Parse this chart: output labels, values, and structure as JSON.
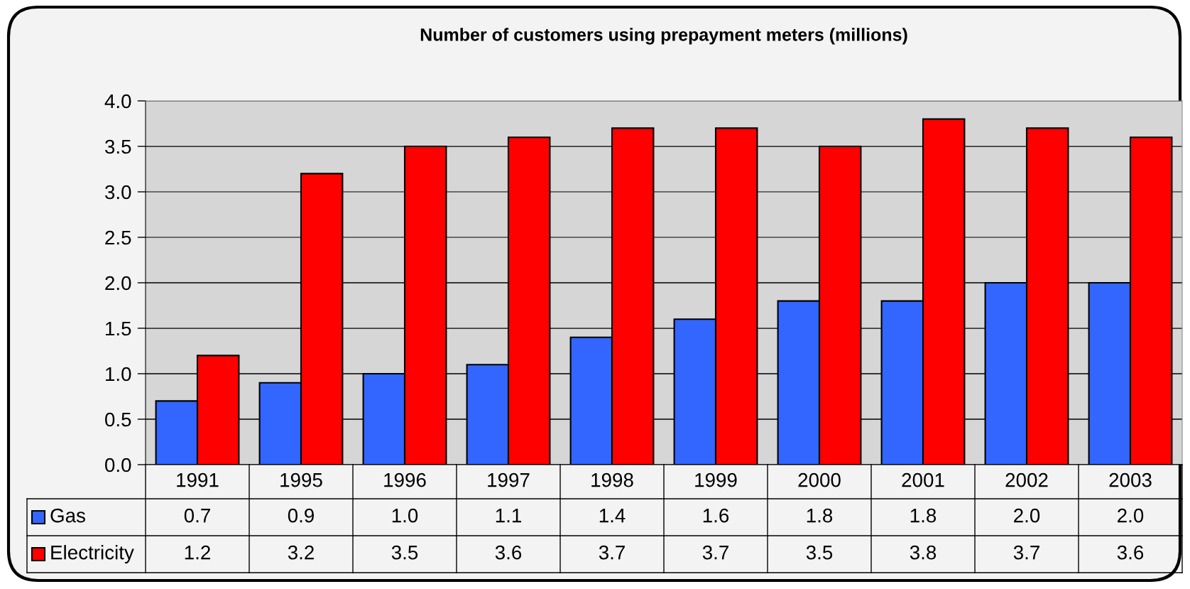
{
  "chart_data": {
    "type": "bar",
    "title": "Number of customers using prepayment meters (millions)",
    "categories": [
      "1991",
      "1995",
      "1996",
      "1997",
      "1998",
      "1999",
      "2000",
      "2001",
      "2002",
      "2003"
    ],
    "series": [
      {
        "name": "Gas",
        "color": "#3366ff",
        "values": [
          0.7,
          0.9,
          1.0,
          1.1,
          1.4,
          1.6,
          1.8,
          1.8,
          2.0,
          2.0
        ],
        "value_labels": [
          "0.7",
          "0.9",
          "1.0",
          "1.1",
          "1.4",
          "1.6",
          "1.8",
          "1.8",
          "2.0",
          "2.0"
        ]
      },
      {
        "name": "Electricity",
        "color": "#ff0000",
        "values": [
          1.2,
          3.2,
          3.5,
          3.6,
          3.7,
          3.7,
          3.5,
          3.8,
          3.7,
          3.6
        ],
        "value_labels": [
          "1.2",
          "3.2",
          "3.5",
          "3.6",
          "3.7",
          "3.7",
          "3.5",
          "3.8",
          "3.7",
          "3.6"
        ]
      }
    ],
    "ylim": [
      0,
      4
    ],
    "yticks": [
      {
        "value": 0,
        "label": "0.0"
      },
      {
        "value": 0.5,
        "label": "0.5"
      },
      {
        "value": 1,
        "label": "1.0"
      },
      {
        "value": 1.5,
        "label": "1.5"
      },
      {
        "value": 2,
        "label": "2.0"
      },
      {
        "value": 2.5,
        "label": "2.5"
      },
      {
        "value": 3,
        "label": "3.0"
      },
      {
        "value": 3.5,
        "label": "3.5"
      },
      {
        "value": 4,
        "label": "4.0"
      }
    ],
    "grid": "y",
    "legend": "bottom"
  }
}
